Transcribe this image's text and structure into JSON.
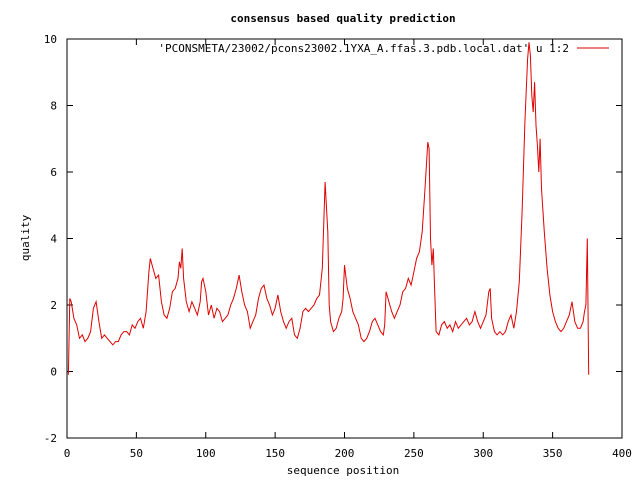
{
  "chart_data": {
    "type": "line",
    "title": "consensus based quality prediction",
    "xlabel": "sequence position",
    "ylabel": "quality",
    "xlim": [
      0,
      400
    ],
    "ylim": [
      -2,
      10
    ],
    "x_ticks": [
      0,
      50,
      100,
      150,
      200,
      250,
      300,
      350,
      400
    ],
    "y_ticks": [
      -2,
      0,
      2,
      4,
      6,
      8,
      10
    ],
    "grid": false,
    "legend_position": "top-right",
    "series": [
      {
        "name": "'PCONSMETA/23002/pcons23002.1YXA_A.ffas.3.pdb.local.dat' u 1:2",
        "color": "#e00000",
        "points": [
          [
            1,
            -0.1
          ],
          [
            2,
            2.2
          ],
          [
            3,
            2.1
          ],
          [
            5,
            1.6
          ],
          [
            7,
            1.4
          ],
          [
            9,
            1.0
          ],
          [
            11,
            1.1
          ],
          [
            13,
            0.9
          ],
          [
            15,
            1.0
          ],
          [
            17,
            1.2
          ],
          [
            19,
            1.9
          ],
          [
            21,
            2.1
          ],
          [
            23,
            1.5
          ],
          [
            25,
            1.0
          ],
          [
            27,
            1.1
          ],
          [
            29,
            1.0
          ],
          [
            31,
            0.9
          ],
          [
            33,
            0.8
          ],
          [
            35,
            0.9
          ],
          [
            37,
            0.9
          ],
          [
            39,
            1.1
          ],
          [
            41,
            1.2
          ],
          [
            43,
            1.2
          ],
          [
            45,
            1.1
          ],
          [
            47,
            1.4
          ],
          [
            49,
            1.3
          ],
          [
            51,
            1.5
          ],
          [
            53,
            1.6
          ],
          [
            55,
            1.3
          ],
          [
            57,
            1.8
          ],
          [
            59,
            3.0
          ],
          [
            60,
            3.4
          ],
          [
            62,
            3.1
          ],
          [
            64,
            2.8
          ],
          [
            66,
            2.9
          ],
          [
            68,
            2.1
          ],
          [
            70,
            1.7
          ],
          [
            72,
            1.6
          ],
          [
            74,
            1.9
          ],
          [
            76,
            2.4
          ],
          [
            78,
            2.5
          ],
          [
            80,
            2.8
          ],
          [
            81,
            3.3
          ],
          [
            82,
            3.1
          ],
          [
            83,
            3.7
          ],
          [
            84,
            2.8
          ],
          [
            86,
            2.1
          ],
          [
            88,
            1.8
          ],
          [
            90,
            2.1
          ],
          [
            92,
            1.9
          ],
          [
            94,
            1.7
          ],
          [
            96,
            2.1
          ],
          [
            97,
            2.7
          ],
          [
            98,
            2.8
          ],
          [
            100,
            2.4
          ],
          [
            102,
            1.7
          ],
          [
            104,
            2.0
          ],
          [
            106,
            1.6
          ],
          [
            108,
            1.9
          ],
          [
            110,
            1.8
          ],
          [
            112,
            1.5
          ],
          [
            114,
            1.6
          ],
          [
            116,
            1.7
          ],
          [
            118,
            2.0
          ],
          [
            120,
            2.2
          ],
          [
            122,
            2.5
          ],
          [
            124,
            2.9
          ],
          [
            126,
            2.4
          ],
          [
            128,
            2.0
          ],
          [
            130,
            1.8
          ],
          [
            132,
            1.3
          ],
          [
            134,
            1.5
          ],
          [
            136,
            1.7
          ],
          [
            138,
            2.2
          ],
          [
            140,
            2.5
          ],
          [
            142,
            2.6
          ],
          [
            144,
            2.2
          ],
          [
            146,
            2.0
          ],
          [
            148,
            1.7
          ],
          [
            150,
            1.9
          ],
          [
            152,
            2.3
          ],
          [
            154,
            1.8
          ],
          [
            156,
            1.5
          ],
          [
            158,
            1.3
          ],
          [
            160,
            1.5
          ],
          [
            162,
            1.6
          ],
          [
            164,
            1.1
          ],
          [
            166,
            1.0
          ],
          [
            168,
            1.3
          ],
          [
            170,
            1.8
          ],
          [
            172,
            1.9
          ],
          [
            174,
            1.8
          ],
          [
            176,
            1.9
          ],
          [
            178,
            2.0
          ],
          [
            180,
            2.2
          ],
          [
            182,
            2.3
          ],
          [
            184,
            3.1
          ],
          [
            186,
            5.7
          ],
          [
            188,
            4.2
          ],
          [
            189,
            2.0
          ],
          [
            190,
            1.5
          ],
          [
            192,
            1.2
          ],
          [
            194,
            1.3
          ],
          [
            196,
            1.6
          ],
          [
            198,
            1.8
          ],
          [
            199,
            2.2
          ],
          [
            200,
            3.2
          ],
          [
            202,
            2.5
          ],
          [
            204,
            2.2
          ],
          [
            206,
            1.8
          ],
          [
            208,
            1.6
          ],
          [
            210,
            1.4
          ],
          [
            212,
            1.0
          ],
          [
            214,
            0.9
          ],
          [
            216,
            1.0
          ],
          [
            218,
            1.2
          ],
          [
            220,
            1.5
          ],
          [
            222,
            1.6
          ],
          [
            224,
            1.4
          ],
          [
            226,
            1.2
          ],
          [
            228,
            1.1
          ],
          [
            229,
            1.4
          ],
          [
            230,
            2.4
          ],
          [
            232,
            2.1
          ],
          [
            234,
            1.8
          ],
          [
            236,
            1.6
          ],
          [
            238,
            1.8
          ],
          [
            240,
            2.0
          ],
          [
            242,
            2.4
          ],
          [
            244,
            2.5
          ],
          [
            246,
            2.8
          ],
          [
            248,
            2.6
          ],
          [
            250,
            3.0
          ],
          [
            252,
            3.4
          ],
          [
            254,
            3.6
          ],
          [
            256,
            4.2
          ],
          [
            258,
            5.5
          ],
          [
            260,
            6.9
          ],
          [
            261,
            6.7
          ],
          [
            262,
            4.0
          ],
          [
            263,
            3.2
          ],
          [
            264,
            3.7
          ],
          [
            265,
            2.4
          ],
          [
            266,
            1.2
          ],
          [
            268,
            1.1
          ],
          [
            270,
            1.4
          ],
          [
            272,
            1.5
          ],
          [
            274,
            1.3
          ],
          [
            276,
            1.4
          ],
          [
            278,
            1.2
          ],
          [
            280,
            1.5
          ],
          [
            282,
            1.3
          ],
          [
            284,
            1.4
          ],
          [
            286,
            1.5
          ],
          [
            288,
            1.6
          ],
          [
            290,
            1.4
          ],
          [
            292,
            1.5
          ],
          [
            294,
            1.8
          ],
          [
            296,
            1.5
          ],
          [
            298,
            1.3
          ],
          [
            300,
            1.5
          ],
          [
            302,
            1.7
          ],
          [
            304,
            2.4
          ],
          [
            305,
            2.5
          ],
          [
            306,
            1.6
          ],
          [
            308,
            1.2
          ],
          [
            310,
            1.1
          ],
          [
            312,
            1.2
          ],
          [
            314,
            1.1
          ],
          [
            316,
            1.2
          ],
          [
            318,
            1.5
          ],
          [
            320,
            1.7
          ],
          [
            322,
            1.3
          ],
          [
            324,
            1.8
          ],
          [
            326,
            2.7
          ],
          [
            328,
            4.8
          ],
          [
            330,
            7.5
          ],
          [
            332,
            9.4
          ],
          [
            333,
            9.9
          ],
          [
            334,
            9.5
          ],
          [
            335,
            8.3
          ],
          [
            336,
            7.8
          ],
          [
            337,
            8.7
          ],
          [
            338,
            7.4
          ],
          [
            339,
            6.8
          ],
          [
            340,
            6.0
          ],
          [
            341,
            7.0
          ],
          [
            342,
            5.5
          ],
          [
            344,
            4.2
          ],
          [
            346,
            3.1
          ],
          [
            348,
            2.3
          ],
          [
            350,
            1.8
          ],
          [
            352,
            1.5
          ],
          [
            354,
            1.3
          ],
          [
            356,
            1.2
          ],
          [
            358,
            1.3
          ],
          [
            360,
            1.5
          ],
          [
            362,
            1.7
          ],
          [
            364,
            2.1
          ],
          [
            365,
            1.8
          ],
          [
            366,
            1.5
          ],
          [
            368,
            1.3
          ],
          [
            370,
            1.3
          ],
          [
            372,
            1.5
          ],
          [
            373,
            1.8
          ],
          [
            374,
            2.0
          ],
          [
            375,
            4.0
          ],
          [
            376,
            -0.1
          ]
        ]
      }
    ]
  }
}
